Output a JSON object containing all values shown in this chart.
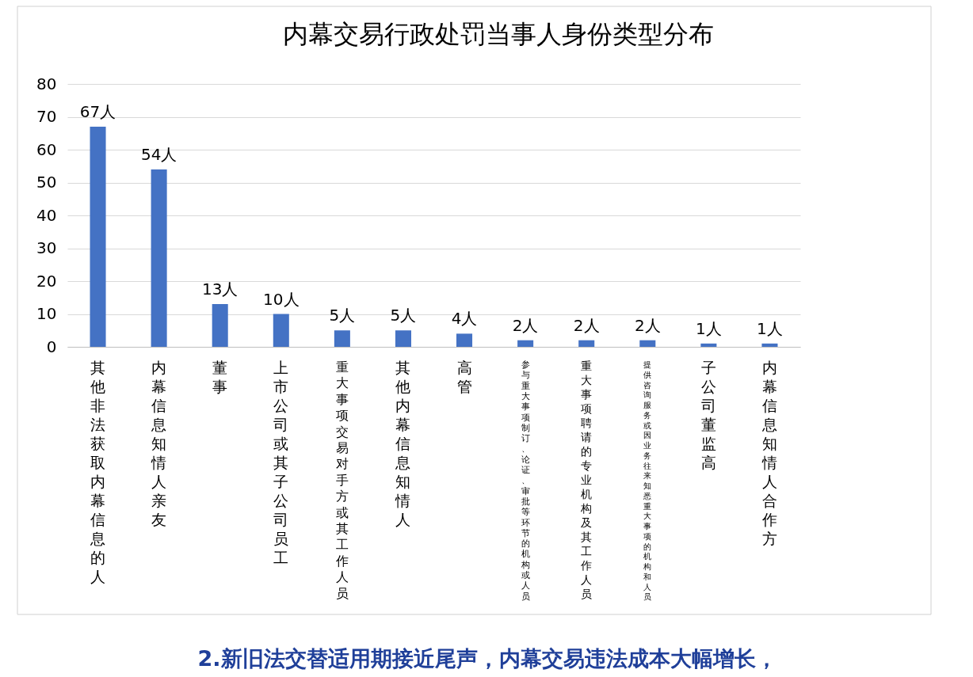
{
  "chart_data": {
    "type": "bar",
    "title": "内幕交易行政处罚当事人身份类型分布",
    "categories": [
      "其他非法获取内幕信息的人",
      "内幕信息知情人亲友",
      "董事",
      "上市公司或其子公司员工",
      "重大事项交易对手方或其工作人员",
      "其他内幕信息知情人",
      "高管",
      "参与重大事项制订、论证、审批等环节的机构或人员",
      "重大事项聘请的专业机构及其工作人员",
      "提供咨询服务或因业务往来知悉重大事项的机构和人员",
      "子公司董监高",
      "内幕信息知情人合作方"
    ],
    "values": [
      67,
      54,
      13,
      10,
      5,
      5,
      4,
      2,
      2,
      2,
      1,
      1
    ],
    "value_labels": [
      "67人",
      "54人",
      "13人",
      "10人",
      "5人",
      "5人",
      "4人",
      "2人",
      "2人",
      "2人",
      "1人",
      "1人"
    ],
    "color": "#4472c4",
    "ylim": [
      0,
      80
    ],
    "yticks": [
      0,
      10,
      20,
      30,
      40,
      50,
      60,
      70,
      80
    ],
    "grid": "y",
    "annotations": [
      "2.新旧法交替适用期接近尾声，内幕交易违法成本大幅增长，"
    ]
  }
}
